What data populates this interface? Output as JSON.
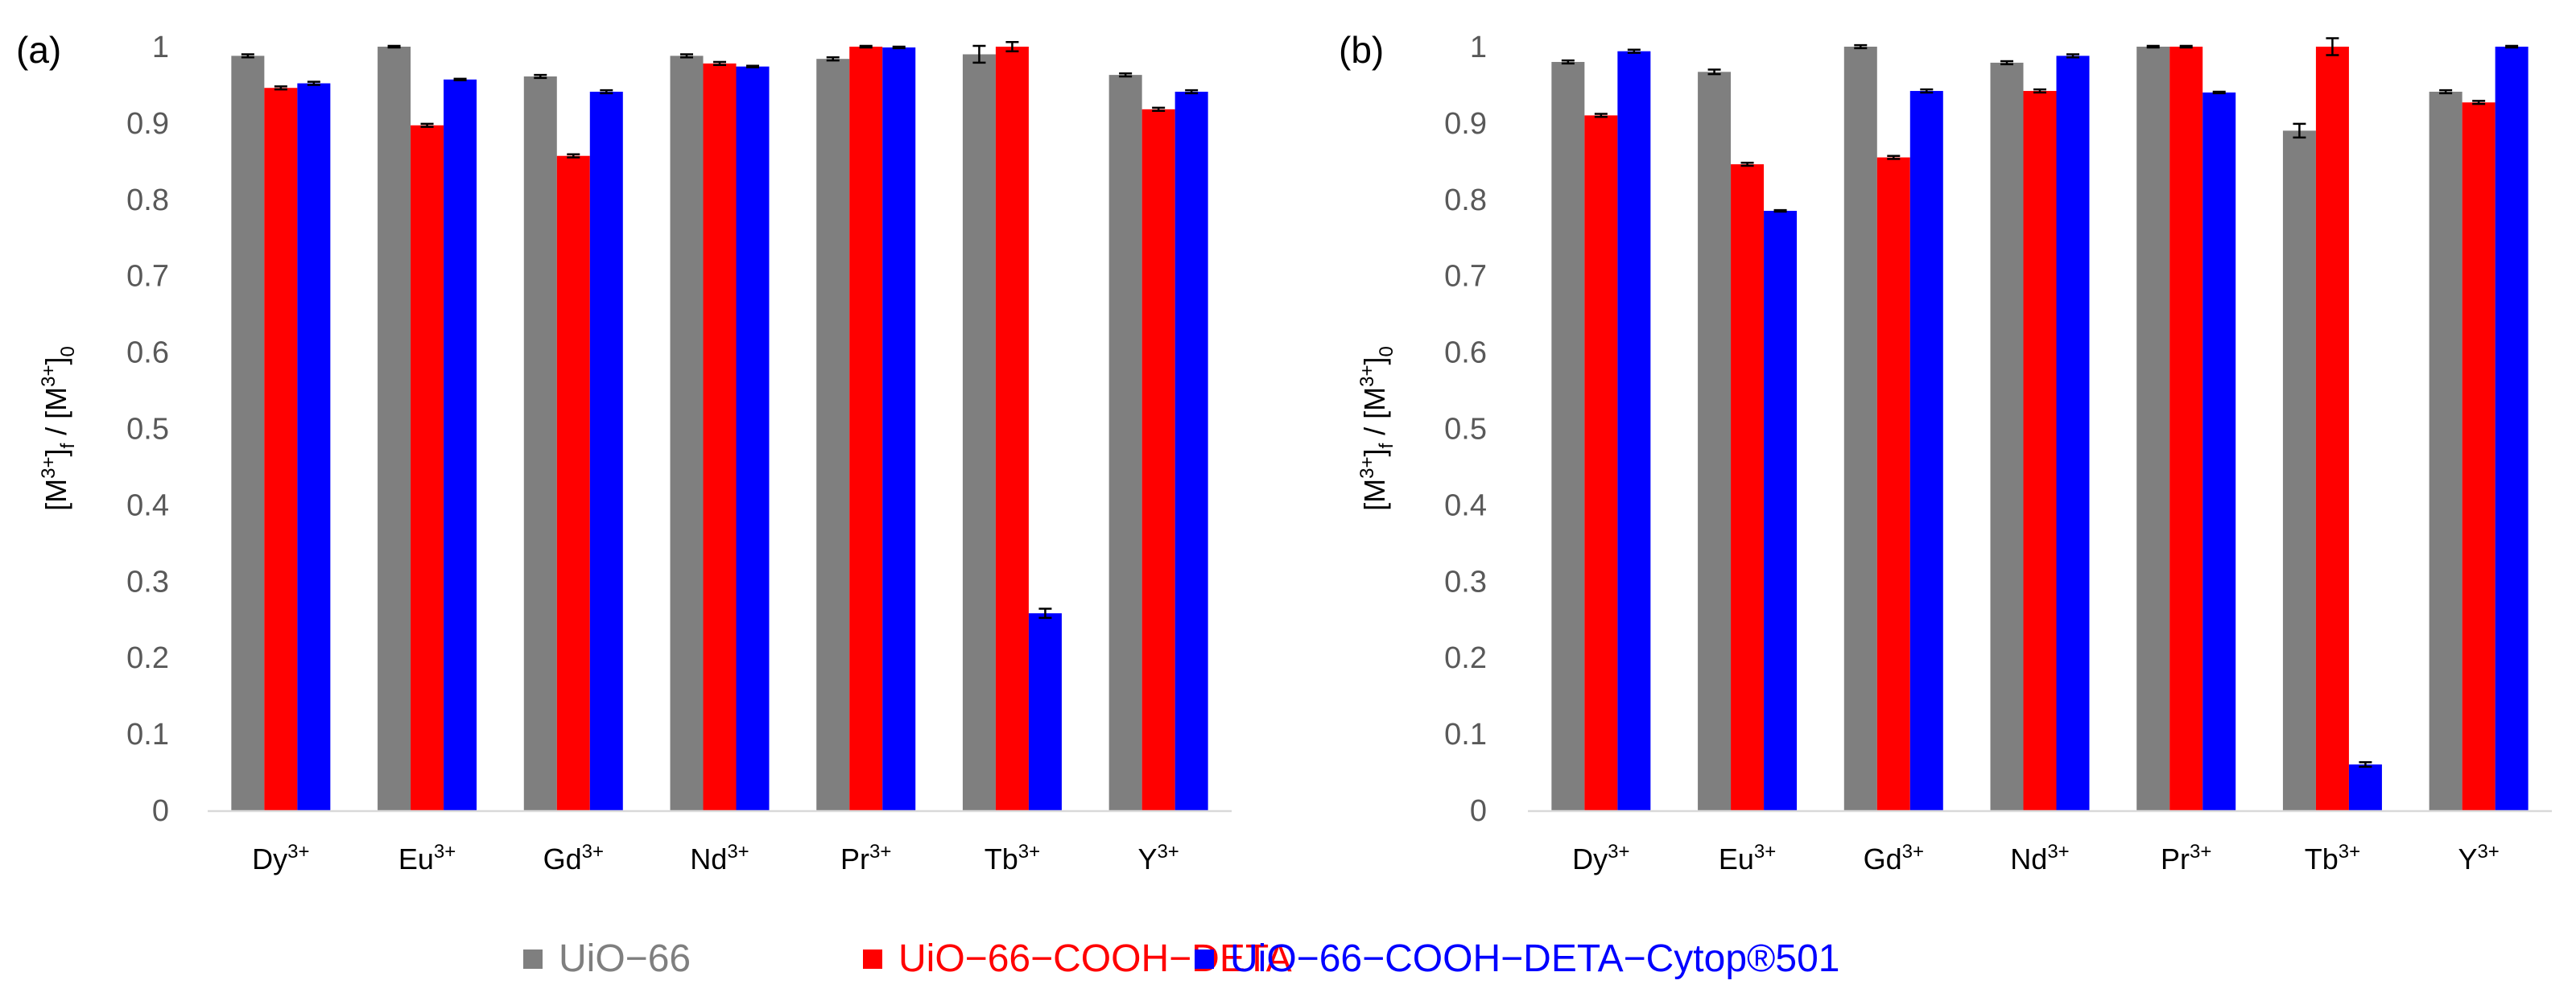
{
  "legend": {
    "position": "bottom-center",
    "entries": [
      {
        "label": "UiO−66",
        "color": "#7f7f7f"
      },
      {
        "label": "UiO−66−COOH−DETA",
        "color": "#ff0000"
      },
      {
        "label": "UiO−66−COOH−DETA−Cytop®501",
        "color": "#0000ff"
      }
    ]
  },
  "chart_data": [
    {
      "type": "bar",
      "panel_label": "(a)",
      "ylabel": "[M3+]f / [M3+]0",
      "ylim": [
        0,
        1
      ],
      "yticks": [
        0,
        0.1,
        0.2,
        0.3,
        0.4,
        0.5,
        0.6,
        0.7,
        0.8,
        0.9,
        1
      ],
      "ytick_labels": [
        "0",
        "0.1",
        "0.2",
        "0.3",
        "0.4",
        "0.5",
        "0.6",
        "0.7",
        "0.8",
        "0.9",
        "1"
      ],
      "grid": false,
      "categories": [
        {
          "base": "Dy",
          "sup": "3+"
        },
        {
          "base": "Eu",
          "sup": "3+"
        },
        {
          "base": "Gd",
          "sup": "3+"
        },
        {
          "base": "Nd",
          "sup": "3+"
        },
        {
          "base": "Pr",
          "sup": "3+"
        },
        {
          "base": "Tb",
          "sup": "3+"
        },
        {
          "base": "Y",
          "sup": "3+"
        }
      ],
      "series": [
        {
          "name": "UiO−66",
          "color": "#7f7f7f",
          "values": [
            0.988,
            1.0,
            0.961,
            0.988,
            0.984,
            0.99,
            0.963
          ],
          "errors": [
            0.002,
            0.001,
            0.002,
            0.002,
            0.002,
            0.011,
            0.002
          ]
        },
        {
          "name": "UiO−66−COOH−DETA",
          "color": "#ff0000",
          "values": [
            0.946,
            0.897,
            0.857,
            0.978,
            1.0,
            1.0,
            0.918
          ],
          "errors": [
            0.002,
            0.002,
            0.002,
            0.002,
            0.001,
            0.006,
            0.002
          ]
        },
        {
          "name": "UiO−66−COOH−DETA−Cytop®501",
          "color": "#0000ff",
          "values": [
            0.952,
            0.957,
            0.941,
            0.974,
            0.999,
            0.258,
            0.941
          ],
          "errors": [
            0.002,
            0.001,
            0.002,
            0.001,
            0.001,
            0.006,
            0.002
          ]
        }
      ]
    },
    {
      "type": "bar",
      "panel_label": "(b)",
      "ylabel": "[M3+]f / [M3+]0",
      "ylim": [
        0,
        1
      ],
      "yticks": [
        0,
        0.1,
        0.2,
        0.3,
        0.4,
        0.5,
        0.6,
        0.7,
        0.8,
        0.9,
        1
      ],
      "ytick_labels": [
        "0",
        "0.1",
        "0.2",
        "0.3",
        "0.4",
        "0.5",
        "0.6",
        "0.7",
        "0.8",
        "0.9",
        "1"
      ],
      "grid": false,
      "categories": [
        {
          "base": "Dy",
          "sup": "3+"
        },
        {
          "base": "Eu",
          "sup": "3+"
        },
        {
          "base": "Gd",
          "sup": "3+"
        },
        {
          "base": "Nd",
          "sup": "3+"
        },
        {
          "base": "Pr",
          "sup": "3+"
        },
        {
          "base": "Tb",
          "sup": "3+"
        },
        {
          "base": "Y",
          "sup": "3+"
        }
      ],
      "series": [
        {
          "name": "UiO−66",
          "color": "#7f7f7f",
          "values": [
            0.98,
            0.967,
            1.0,
            0.979,
            1.0,
            0.89,
            0.941
          ],
          "errors": [
            0.002,
            0.003,
            0.002,
            0.002,
            0.001,
            0.009,
            0.002
          ]
        },
        {
          "name": "UiO−66−COOH−DETA",
          "color": "#ff0000",
          "values": [
            0.91,
            0.846,
            0.855,
            0.942,
            1.0,
            1.0,
            0.927
          ],
          "errors": [
            0.002,
            0.002,
            0.002,
            0.002,
            0.001,
            0.011,
            0.002
          ]
        },
        {
          "name": "UiO−66−COOH−DETA−Cytop®501",
          "color": "#0000ff",
          "values": [
            0.994,
            0.785,
            0.942,
            0.988,
            0.94,
            0.06,
            1.0
          ],
          "errors": [
            0.002,
            0.001,
            0.002,
            0.002,
            0.001,
            0.003,
            0.001
          ]
        }
      ]
    }
  ]
}
